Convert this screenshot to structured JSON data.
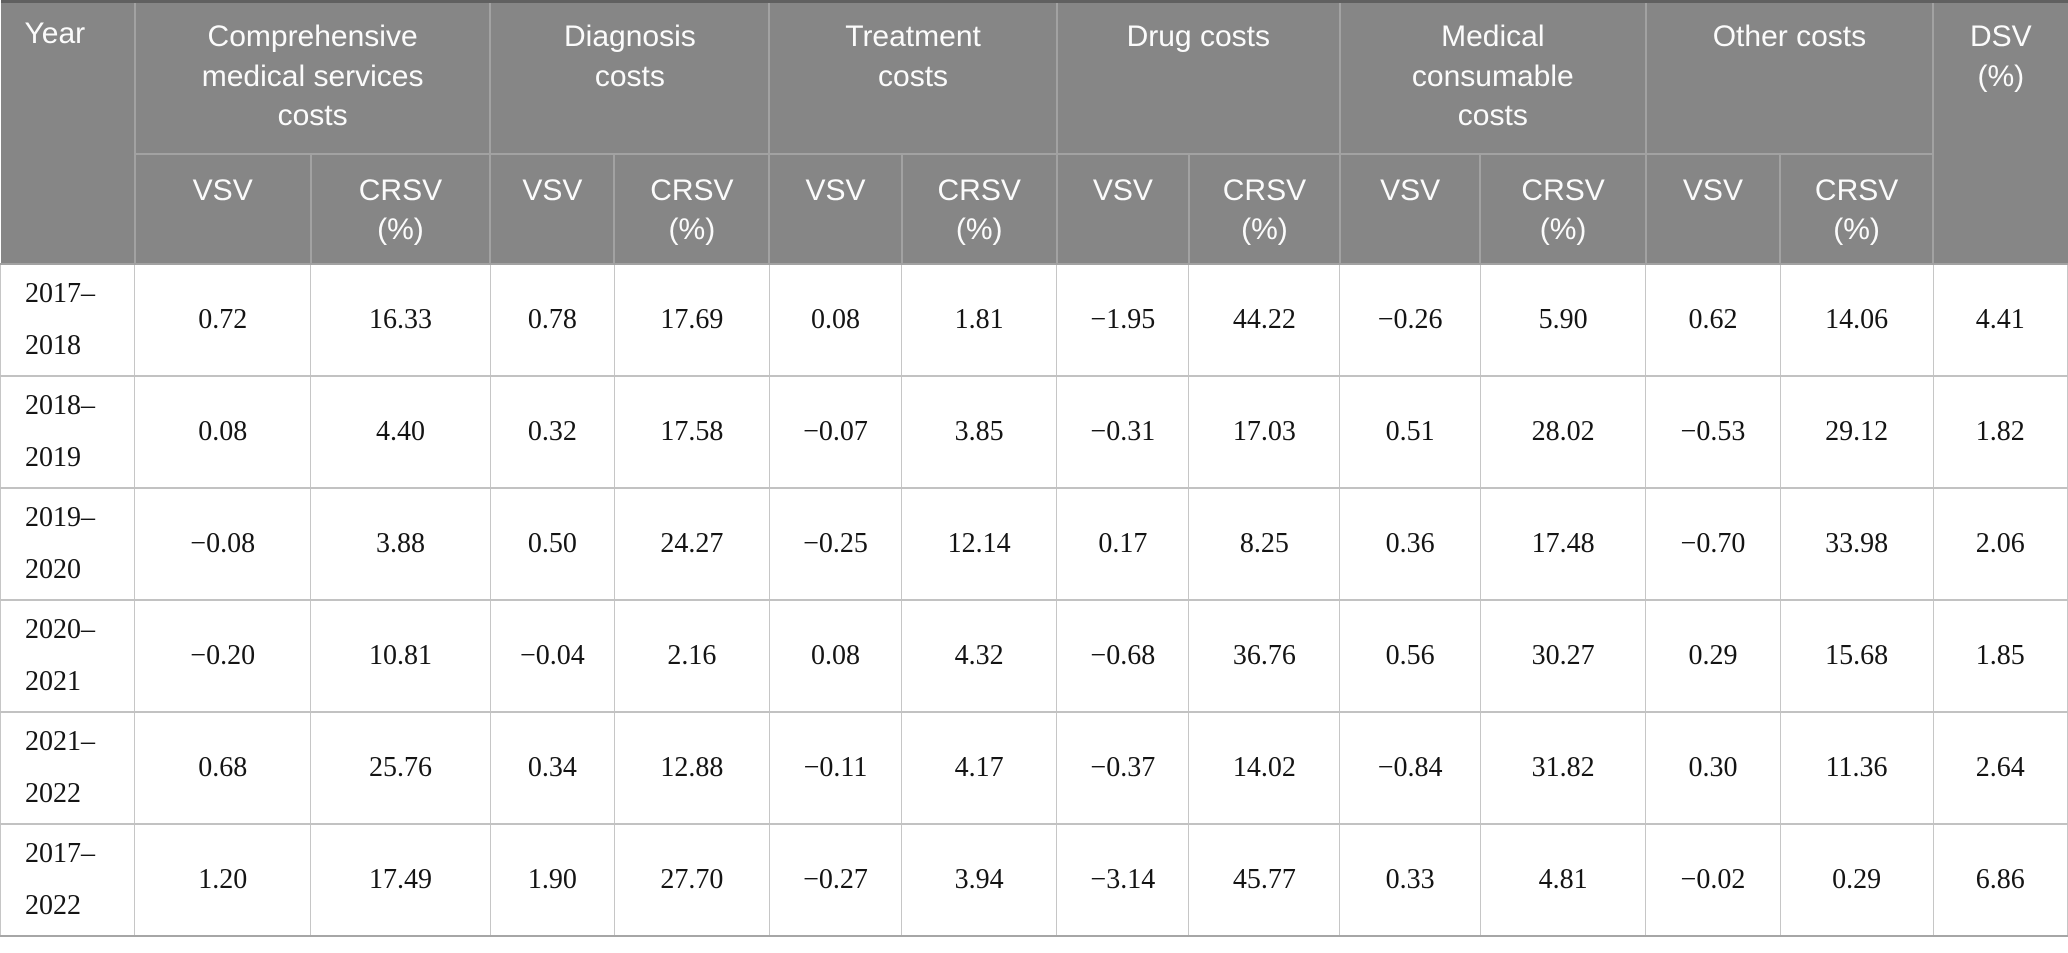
{
  "colors": {
    "header_bg": "#868686",
    "header_text": "#fbfbfb",
    "header_divider": "#a2a2a2",
    "body_divider": "#c2c2c2",
    "top_border": "#606060"
  },
  "table": {
    "header": {
      "year_label": "Year",
      "dsv_label": "DSV\n(%)",
      "sub_labels": {
        "vsv": "VSV",
        "crsv": "CRSV\n(%)"
      },
      "groups": [
        {
          "label": "Comprehensive\nmedical services\ncosts",
          "sub": [
            "VSV",
            "CRSV\n(%)"
          ]
        },
        {
          "label": "Diagnosis\ncosts",
          "sub": [
            "VSV",
            "CRSV\n(%)"
          ]
        },
        {
          "label": "Treatment\ncosts",
          "sub": [
            "VSV",
            "CRSV\n(%)"
          ]
        },
        {
          "label": "Drug costs",
          "sub": [
            "VSV",
            "CRSV\n(%)"
          ]
        },
        {
          "label": "Medical\nconsumable\ncosts",
          "sub": [
            "VSV",
            "CRSV\n(%)"
          ]
        },
        {
          "label": "Other costs",
          "sub": [
            "VSV",
            "CRSV\n(%)"
          ]
        }
      ]
    },
    "rows": [
      {
        "year": "2017–\n2018",
        "values": [
          "0.72",
          "16.33",
          "0.78",
          "17.69",
          "0.08",
          "1.81",
          "−1.95",
          "44.22",
          "−0.26",
          "5.90",
          "0.62",
          "14.06",
          "4.41"
        ]
      },
      {
        "year": "2018–\n2019",
        "values": [
          "0.08",
          "4.40",
          "0.32",
          "17.58",
          "−0.07",
          "3.85",
          "−0.31",
          "17.03",
          "0.51",
          "28.02",
          "−0.53",
          "29.12",
          "1.82"
        ]
      },
      {
        "year": "2019–\n2020",
        "values": [
          "−0.08",
          "3.88",
          "0.50",
          "24.27",
          "−0.25",
          "12.14",
          "0.17",
          "8.25",
          "0.36",
          "17.48",
          "−0.70",
          "33.98",
          "2.06"
        ]
      },
      {
        "year": "2020–\n2021",
        "values": [
          "−0.20",
          "10.81",
          "−0.04",
          "2.16",
          "0.08",
          "4.32",
          "−0.68",
          "36.76",
          "0.56",
          "30.27",
          "0.29",
          "15.68",
          "1.85"
        ]
      },
      {
        "year": "2021–\n2022",
        "values": [
          "0.68",
          "25.76",
          "0.34",
          "12.88",
          "−0.11",
          "4.17",
          "−0.37",
          "14.02",
          "−0.84",
          "31.82",
          "0.30",
          "11.36",
          "2.64"
        ]
      },
      {
        "year": "2017–\n2022",
        "values": [
          "1.20",
          "17.49",
          "1.90",
          "27.70",
          "−0.27",
          "3.94",
          "−3.14",
          "45.77",
          "0.33",
          "4.81",
          "−0.02",
          "0.29",
          "6.86"
        ]
      }
    ],
    "chart_data": {
      "type": "table",
      "row_header": "Year",
      "column_groups": [
        "Comprehensive medical services costs",
        "Diagnosis costs",
        "Treatment costs",
        "Drug costs",
        "Medical consumable costs",
        "Other costs",
        "DSV (%)"
      ],
      "sub_columns": [
        "VSV",
        "CRSV (%)"
      ]
    }
  }
}
